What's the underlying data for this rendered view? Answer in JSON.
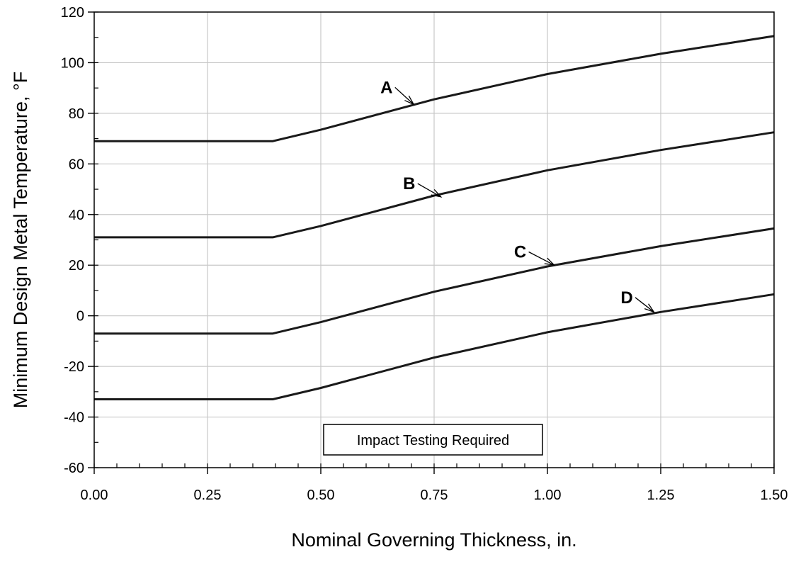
{
  "chart_data": {
    "type": "line",
    "title": "",
    "xlabel": "Nominal Governing Thickness, in.",
    "ylabel": "Minimum Design Metal Temperature, °F",
    "xlim": [
      0,
      1.5
    ],
    "ylim": [
      -60,
      120
    ],
    "x_ticks": [
      "0.00",
      "0.25",
      "0.50",
      "0.75",
      "1.00",
      "1.25",
      "1.50"
    ],
    "y_ticks": [
      "-60",
      "-40",
      "-20",
      "0",
      "20",
      "40",
      "60",
      "80",
      "100",
      "120"
    ],
    "grid": true,
    "series": [
      {
        "name": "A",
        "x": [
          0,
          0.394,
          0.5,
          0.75,
          1.0,
          1.25,
          1.5
        ],
        "y": [
          69,
          69,
          73.5,
          85.5,
          95.5,
          103.5,
          110.5
        ]
      },
      {
        "name": "B",
        "x": [
          0,
          0.394,
          0.5,
          0.75,
          1.0,
          1.25,
          1.5
        ],
        "y": [
          31,
          31,
          35.5,
          47.5,
          57.5,
          65.5,
          72.5
        ]
      },
      {
        "name": "C",
        "x": [
          0,
          0.394,
          0.5,
          0.75,
          1.0,
          1.25,
          1.5
        ],
        "y": [
          -7,
          -7,
          -2.5,
          9.5,
          19.5,
          27.5,
          34.5
        ]
      },
      {
        "name": "D",
        "x": [
          0,
          0.394,
          0.5,
          0.75,
          1.0,
          1.25,
          1.5
        ],
        "y": [
          -33,
          -33,
          -28.5,
          -16.5,
          -6.5,
          1.5,
          8.5
        ]
      }
    ],
    "annotations": [
      {
        "text": "A",
        "label_at": [
          0.645,
          88
        ],
        "arrow_to": [
          0.705,
          83.5
        ]
      },
      {
        "text": "B",
        "label_at": [
          0.695,
          50
        ],
        "arrow_to": [
          0.765,
          47
        ]
      },
      {
        "text": "C",
        "label_at": [
          0.94,
          23
        ],
        "arrow_to": [
          1.015,
          20
        ]
      },
      {
        "text": "D",
        "label_at": [
          1.175,
          5
        ],
        "arrow_to": [
          1.235,
          1.5
        ]
      }
    ],
    "note": "Impact Testing Required"
  }
}
